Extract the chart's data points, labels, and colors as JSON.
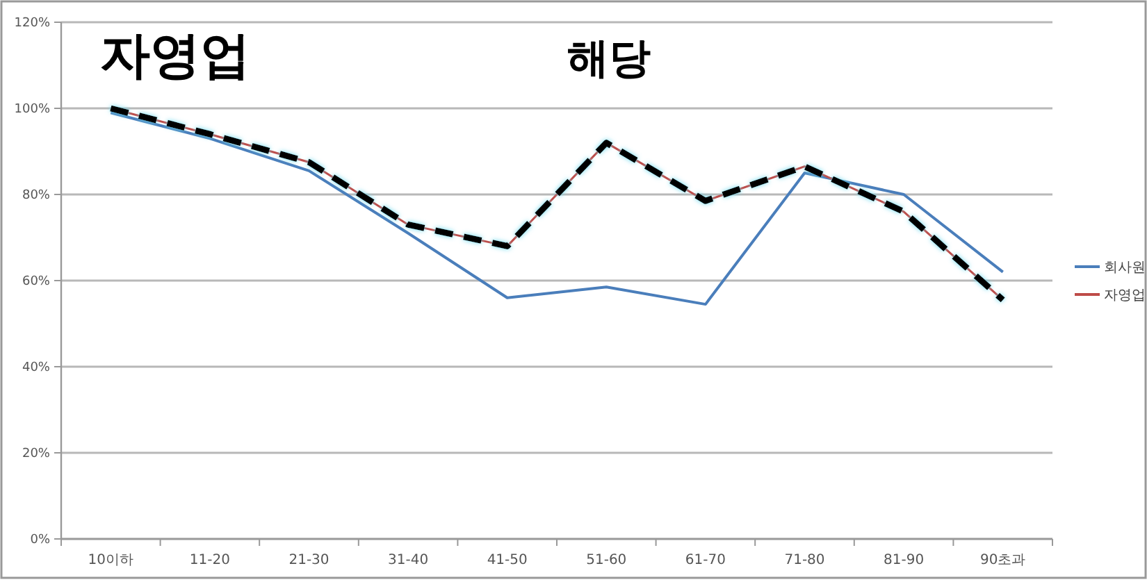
{
  "chart_data": {
    "type": "line",
    "categories": [
      "10이하",
      "11-20",
      "21-30",
      "31-40",
      "41-50",
      "51-60",
      "61-70",
      "71-80",
      "81-90",
      "90초과"
    ],
    "series": [
      {
        "name": "회사원",
        "color": "#4a7ebb",
        "values": [
          99,
          93,
          85.5,
          71,
          56,
          58.5,
          54.5,
          85,
          80,
          62
        ]
      },
      {
        "name": "자영업",
        "color": "#be4b48",
        "values": [
          100,
          94,
          87.5,
          73,
          68,
          92,
          78.5,
          86.5,
          76,
          55.5
        ]
      },
      {
        "color": "#000000",
        "line_style": "dashed",
        "values": [
          100,
          94,
          87.5,
          73,
          68,
          92,
          78.5,
          86.5,
          76,
          55.5
        ]
      }
    ],
    "ylim": [
      0,
      120
    ],
    "yticks": [
      {
        "value": 0,
        "label": "0%"
      },
      {
        "value": 20,
        "label": "20%"
      },
      {
        "value": 40,
        "label": "40%"
      },
      {
        "value": 60,
        "label": "60%"
      },
      {
        "value": 80,
        "label": "80%"
      },
      {
        "value": 100,
        "label": "100%"
      },
      {
        "value": 120,
        "label": "120%"
      }
    ],
    "grid": "y",
    "legend": "right",
    "annotations": [
      "자영업",
      "해당"
    ]
  }
}
